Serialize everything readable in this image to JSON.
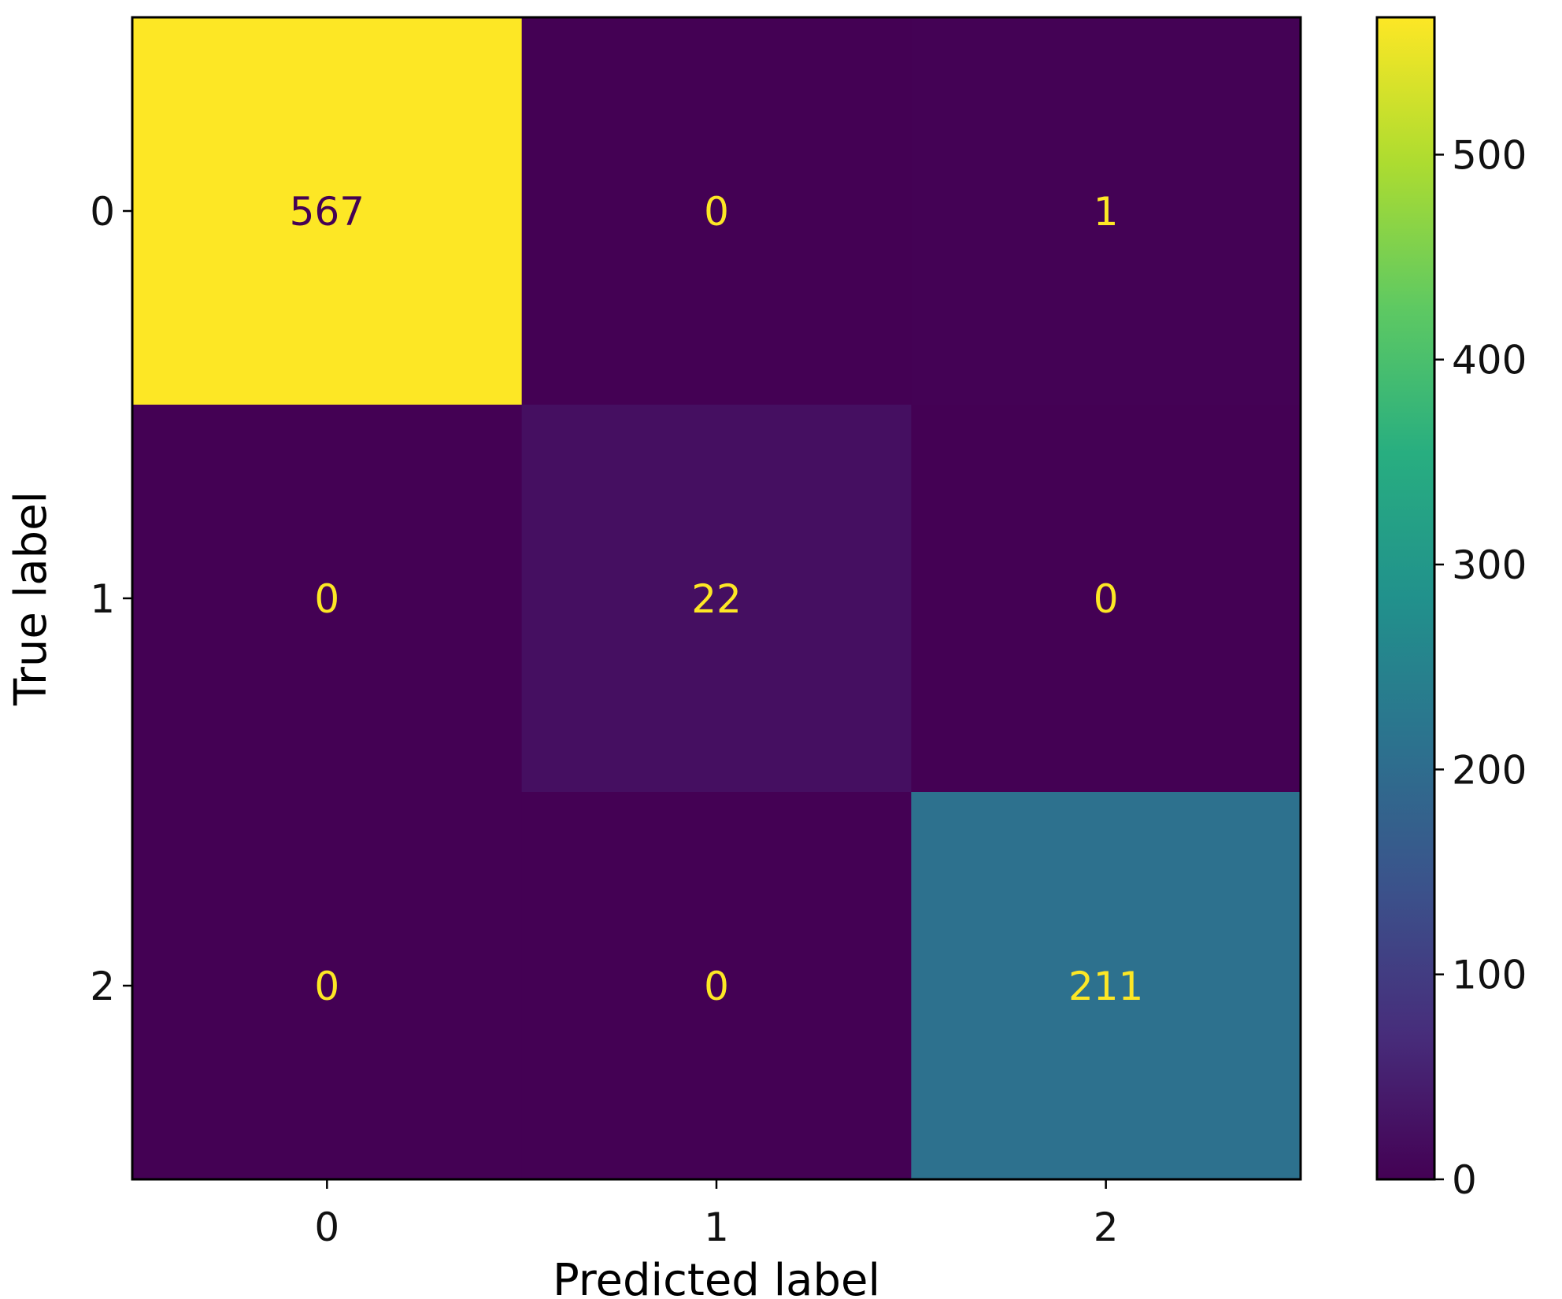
{
  "chart_data": {
    "type": "heatmap",
    "title": "",
    "xlabel": "Predicted label",
    "ylabel": "True label",
    "x_categories": [
      "0",
      "1",
      "2"
    ],
    "y_categories": [
      "0",
      "1",
      "2"
    ],
    "values": [
      [
        567,
        0,
        1
      ],
      [
        0,
        22,
        0
      ],
      [
        0,
        0,
        211
      ]
    ],
    "colormap": "viridis",
    "colorbar": {
      "range": [
        0,
        567
      ],
      "ticks": [
        0,
        100,
        200,
        300,
        400,
        500
      ]
    },
    "text_colors": {
      "on_dark": "#fde725",
      "on_light": "#440154"
    },
    "grid": false,
    "legend": "colorbar-right"
  }
}
